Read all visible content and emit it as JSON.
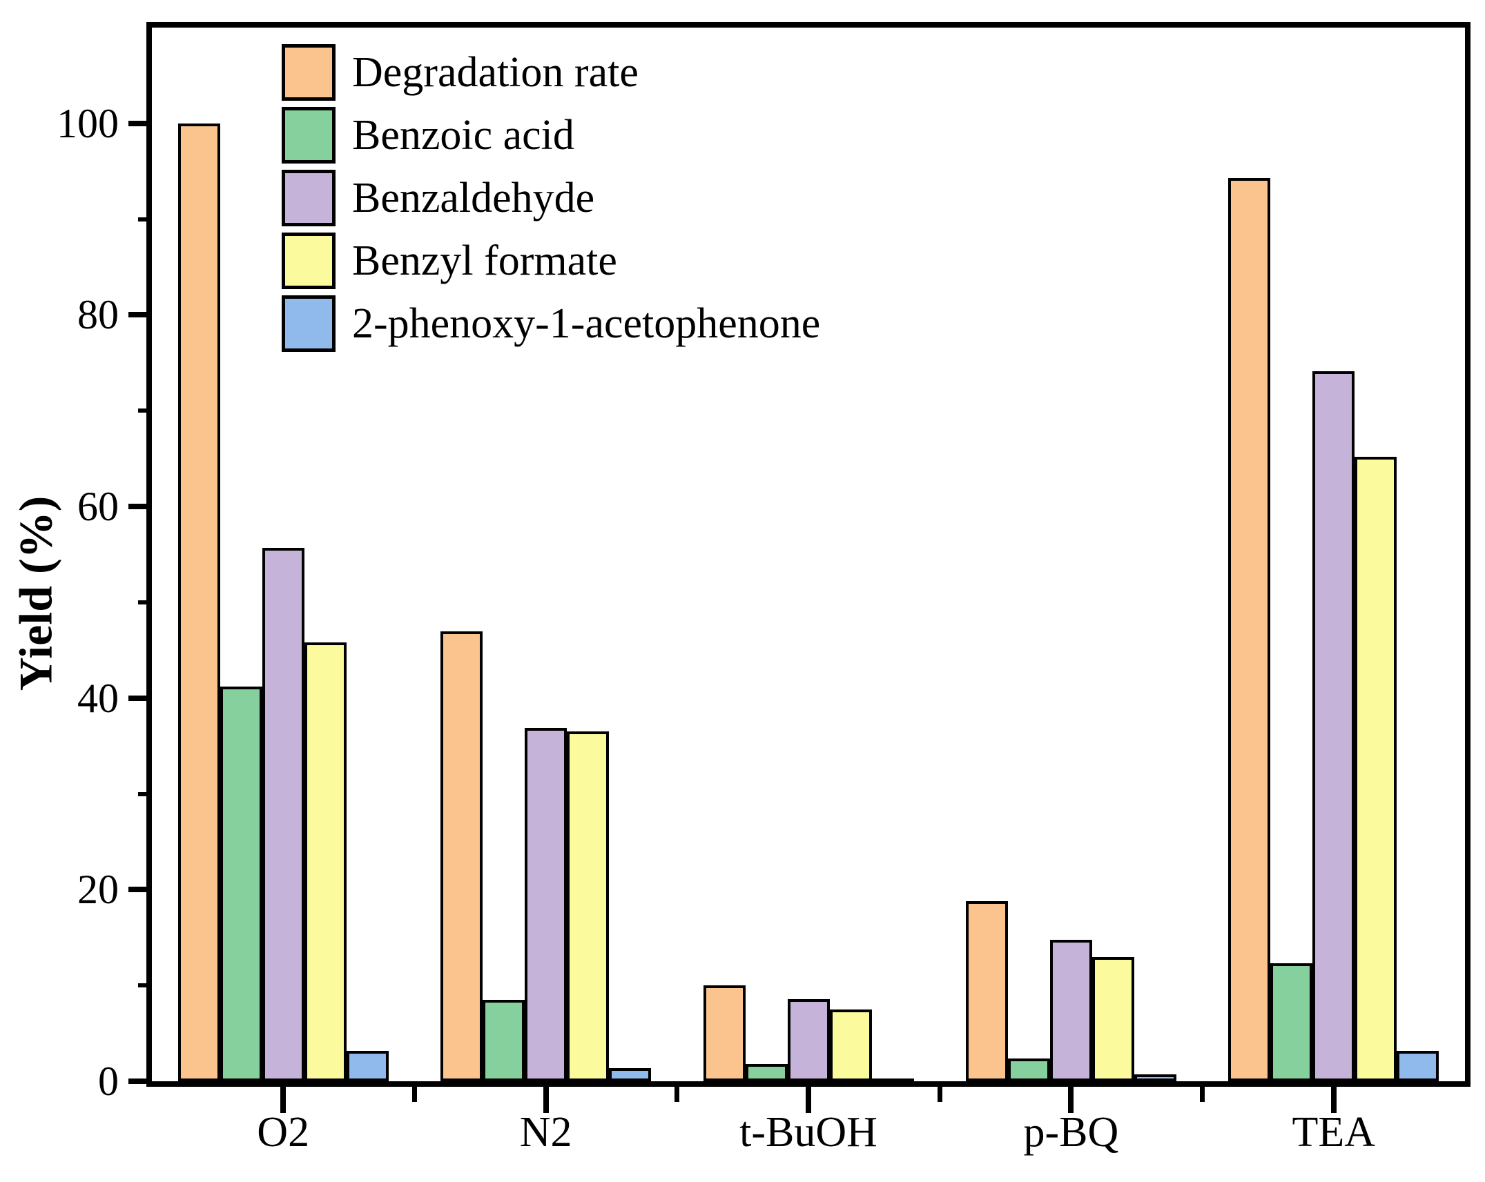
{
  "figure": {
    "background": "#ffffff",
    "text_color": "#000000",
    "bar_border_color": "#000000"
  },
  "axes": {
    "y_title": "Yield (%)",
    "y_major_ticks": [
      0,
      20,
      40,
      60,
      80,
      100
    ],
    "y_minor_ticks": [
      10,
      30,
      50,
      70,
      90
    ],
    "x_categories": [
      "O2",
      "N2",
      "t-BuOH",
      "p-BQ",
      "TEA"
    ]
  },
  "chart_data": {
    "type": "bar",
    "title": "",
    "xlabel": "",
    "ylabel": "Yield (%)",
    "ylim": [
      0,
      110
    ],
    "grid": false,
    "legend_position": "top-left",
    "categories": [
      "O2",
      "N2",
      "t-BuOH",
      "p-BQ",
      "TEA"
    ],
    "series": [
      {
        "name": "Degradation rate",
        "color": "#FBC38E",
        "values": [
          100.0,
          47.0,
          10.0,
          18.8,
          94.3
        ]
      },
      {
        "name": "Benzoic acid",
        "color": "#85D09C",
        "values": [
          41.2,
          8.5,
          1.8,
          2.4,
          12.3
        ]
      },
      {
        "name": "Benzaldehyde",
        "color": "#C6B3D9",
        "values": [
          55.7,
          36.9,
          8.6,
          14.8,
          74.1
        ]
      },
      {
        "name": "Benzyl formate",
        "color": "#FBFB9D",
        "values": [
          45.8,
          36.5,
          7.5,
          13.0,
          65.2
        ]
      },
      {
        "name": "2-phenoxy-1-acetophenone",
        "color": "#90B9EC",
        "values": [
          3.2,
          1.4,
          0.3,
          0.7,
          3.2
        ]
      }
    ]
  }
}
